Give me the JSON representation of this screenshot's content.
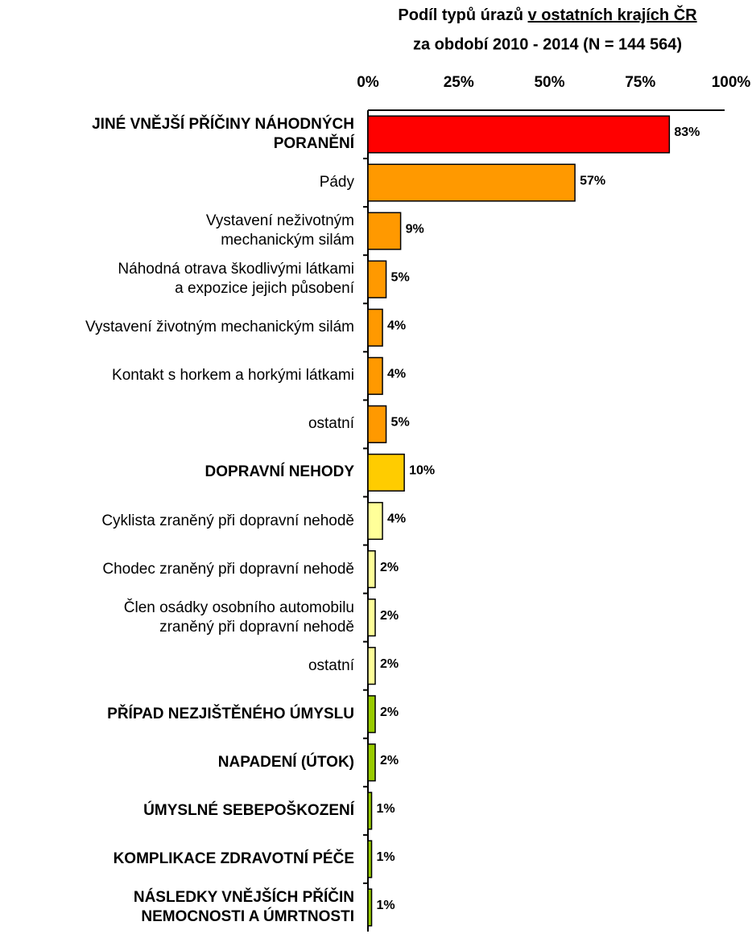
{
  "chart_data": {
    "type": "bar",
    "orientation": "horizontal",
    "title": "Podíl typů úrazů",
    "title_underlined": "v ostatních krajích ČR",
    "subtitle": "za období 2010 - 2014 (N = 144 564)",
    "categories": [
      "JINÉ VNĚJŠÍ PŘÍČINY NÁHODNÝCH\nPORANĚNÍ",
      "Pády",
      "Vystavení neživotným\nmechanickým silám",
      "Náhodná otrava škodlivými látkami\na expozice jejich působení",
      "Vystavení životným mechanickým silám",
      "Kontakt s horkem a horkými látkami",
      "ostatní",
      "DOPRAVNÍ NEHODY",
      "Cyklista zraněný při dopravní nehodě",
      "Chodec zraněný při dopravní nehodě",
      "Člen osádky osobního automobilu\nzraněný při dopravní nehodě",
      "ostatní",
      "PŘÍPAD NEZJIŠTĚNÉHO ÚMYSLU",
      "NAPADENÍ (ÚTOK)",
      "ÚMYSLNÉ SEBEPOŠKOZENÍ",
      "KOMPLIKACE ZDRAVOTNÍ PÉČE",
      "NÁSLEDKY VNĚJŠÍCH PŘÍČIN\nNEMOCNOSTI A ÚMRTNOSTI"
    ],
    "bold": [
      true,
      false,
      false,
      false,
      false,
      false,
      false,
      true,
      false,
      false,
      false,
      false,
      true,
      true,
      true,
      true,
      true
    ],
    "values": [
      83,
      57,
      9,
      5,
      4,
      4,
      5,
      10,
      4,
      2,
      2,
      2,
      2,
      2,
      1,
      1,
      1
    ],
    "value_labels": [
      "83%",
      "57%",
      "9%",
      "5%",
      "4%",
      "4%",
      "5%",
      "10%",
      "4%",
      "2%",
      "2%",
      "2%",
      "2%",
      "2%",
      "1%",
      "1%",
      "1%"
    ],
    "colors": [
      "#ff0000",
      "#ff9900",
      "#ff9900",
      "#ff9900",
      "#ff9900",
      "#ff9900",
      "#ff9900",
      "#ffcc00",
      "#ffff99",
      "#ffff99",
      "#ffff99",
      "#ffff99",
      "#99cc00",
      "#99cc00",
      "#99cc00",
      "#99cc00",
      "#99cc00"
    ],
    "xlim": [
      0,
      100
    ],
    "xticks": [
      {
        "value": 0,
        "label": "0%"
      },
      {
        "value": 25,
        "label": "25%"
      },
      {
        "value": 50,
        "label": "50%"
      },
      {
        "value": 75,
        "label": "75%"
      },
      {
        "value": 100,
        "label": "100%"
      }
    ],
    "grid": false
  }
}
